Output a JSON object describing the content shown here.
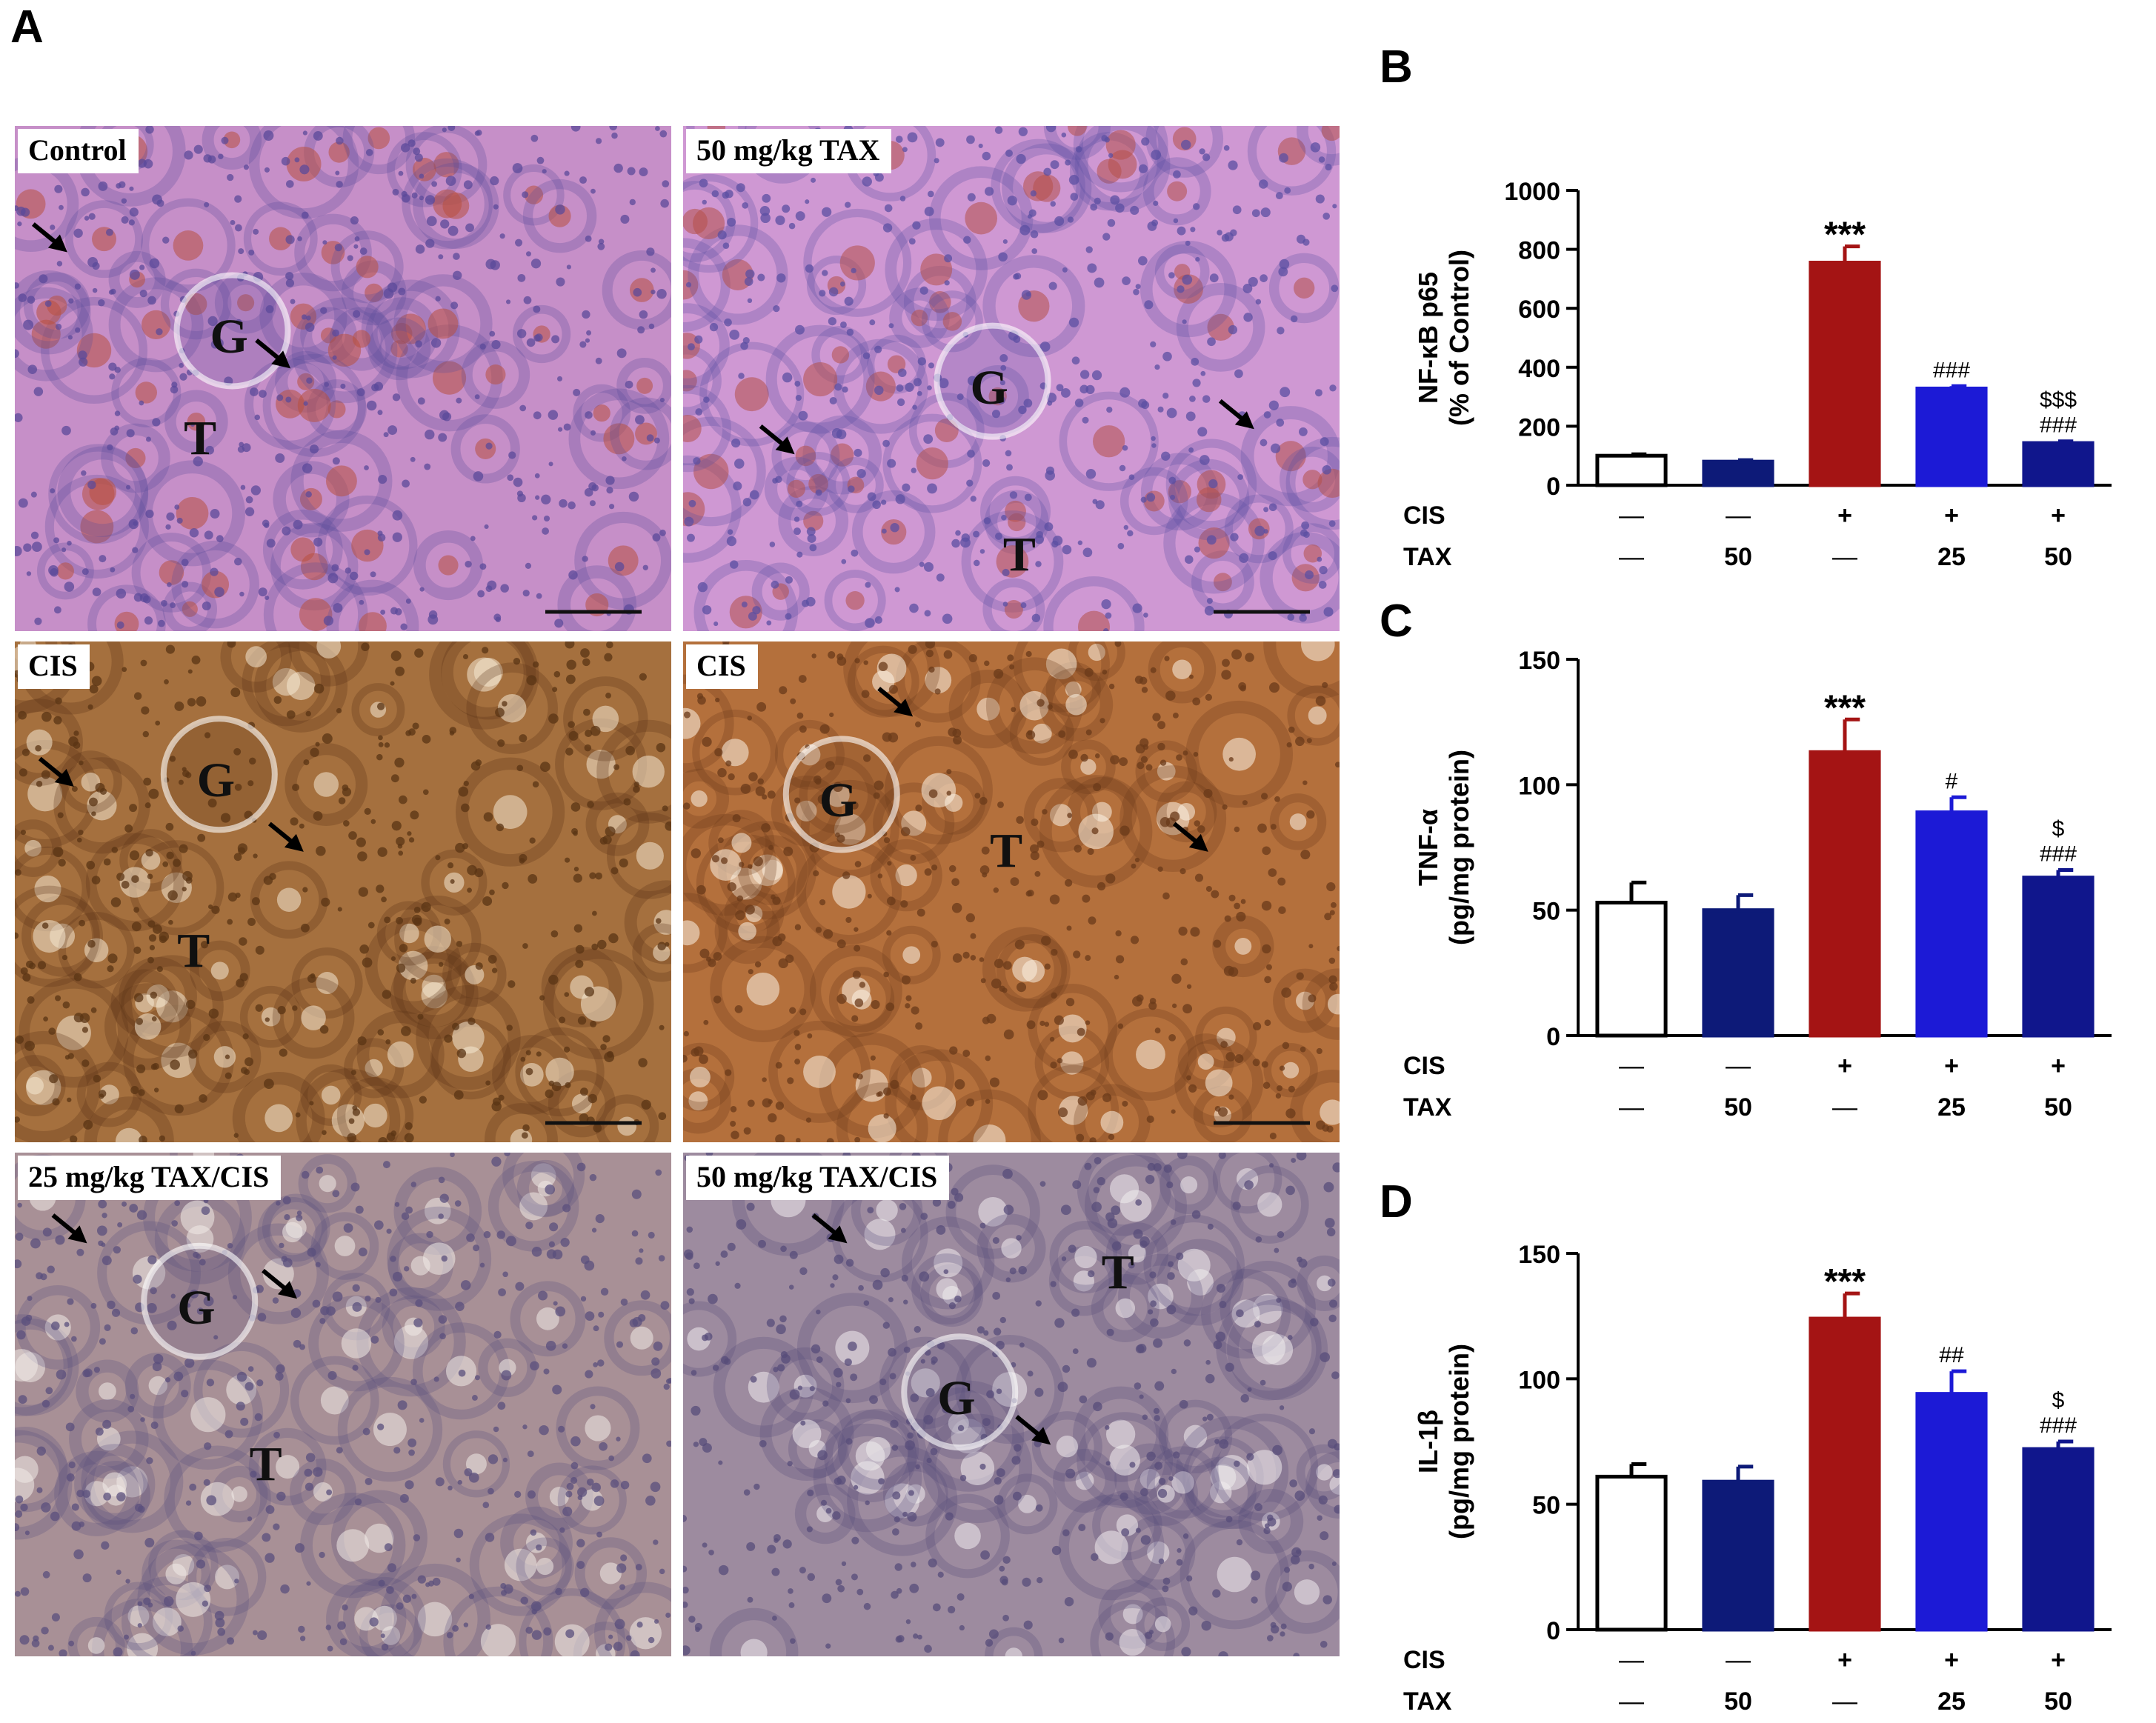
{
  "panel_a": {
    "letter": "A",
    "micrographs": [
      {
        "label": "Control",
        "stain": "#c68fc8",
        "cells": "#5b4a9a",
        "accent": "#b85040"
      },
      {
        "label": "50 mg/kg TAX",
        "stain": "#cf98d3",
        "cells": "#5b4fa2",
        "accent": "#b45048"
      },
      {
        "label": "CIS",
        "stain": "#a5703e",
        "cells": "#5a3414",
        "accent": "#f4e7d2"
      },
      {
        "label": "CIS",
        "stain": "#b4703c",
        "cells": "#6a3a1a",
        "accent": "#fbf3e3"
      },
      {
        "label": "25 mg/kg TAX/CIS",
        "stain": "#a89096",
        "cells": "#5a4f7c",
        "accent": "#f0ebe8"
      },
      {
        "label": "50 mg/kg TAX/CIS",
        "stain": "#9d8b9f",
        "cells": "#574c7a",
        "accent": "#f1ecee"
      }
    ],
    "glomerulus_label": "G",
    "tubule_label": "T"
  },
  "treatments": {
    "row_labels": [
      "CIS",
      "TAX"
    ],
    "cis": [
      "—",
      "—",
      "+",
      "+",
      "+"
    ],
    "tax": [
      "—",
      "50",
      "—",
      "25",
      "50"
    ]
  },
  "bar_colors": [
    "#ffffff",
    "#0d1a78",
    "#a41414",
    "#1c1ad6",
    "#10168c"
  ],
  "chart_data": [
    {
      "type": "bar",
      "panel": "B",
      "ylabel": "NF-κB p65",
      "ylabel2": "(% of Control)",
      "ylim": [
        0,
        1000
      ],
      "yticks": [
        0,
        200,
        400,
        600,
        800,
        1000
      ],
      "values": [
        100,
        80,
        755,
        328,
        143
      ],
      "errors": [
        5,
        5,
        55,
        8,
        6
      ],
      "annotations": [
        [],
        [],
        [
          "***"
        ],
        [
          "###"
        ],
        [
          "$$$",
          "###"
        ]
      ]
    },
    {
      "type": "bar",
      "panel": "C",
      "ylabel": "TNF-α",
      "ylabel2": "(pg/mg protein)",
      "ylim": [
        0,
        150
      ],
      "yticks": [
        0,
        50,
        100,
        150
      ],
      "values": [
        53,
        50,
        113,
        89,
        63
      ],
      "errors": [
        8,
        6,
        13,
        6,
        3
      ],
      "annotations": [
        [],
        [],
        [
          "***"
        ],
        [
          "#"
        ],
        [
          "$",
          "###"
        ]
      ]
    },
    {
      "type": "bar",
      "panel": "D",
      "ylabel": "IL-1β",
      "ylabel2": "(pg/mg protein)",
      "ylim": [
        0,
        150
      ],
      "yticks": [
        0,
        50,
        100,
        150
      ],
      "values": [
        61,
        59,
        124,
        94,
        72
      ],
      "errors": [
        5,
        6,
        10,
        9,
        3
      ],
      "annotations": [
        [],
        [],
        [
          "***"
        ],
        [
          "##"
        ],
        [
          "$",
          "###"
        ]
      ]
    }
  ]
}
